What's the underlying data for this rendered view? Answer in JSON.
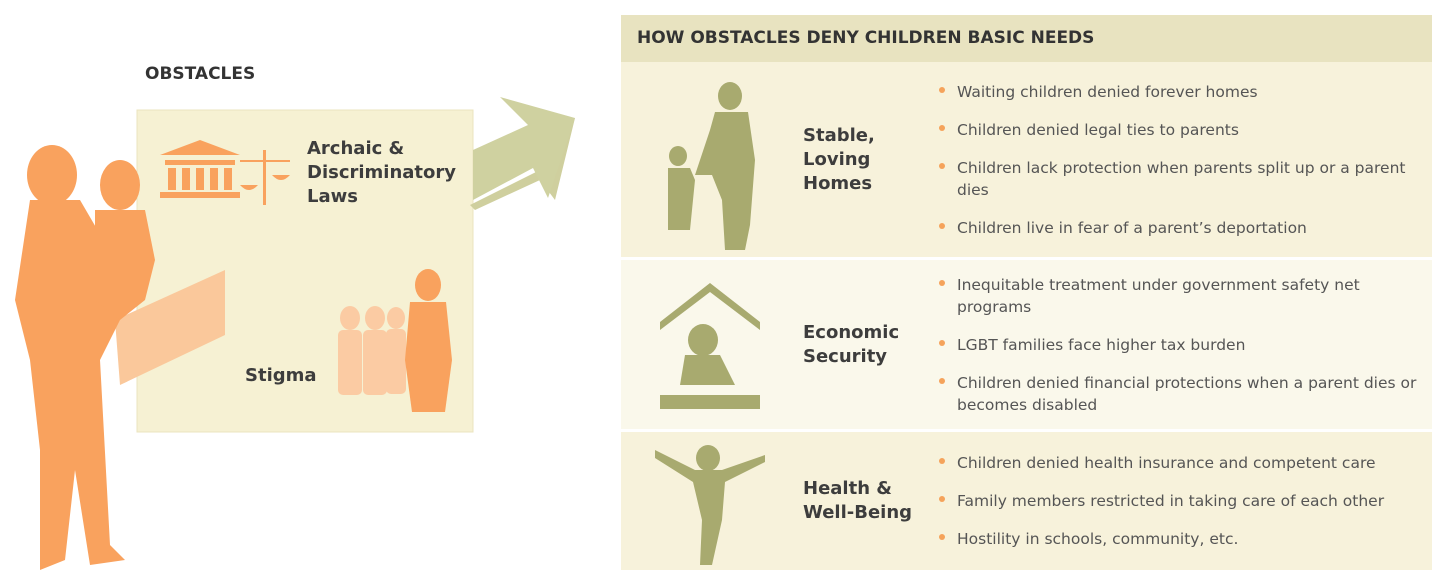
{
  "obstacles": {
    "title": "OBSTACLES",
    "items": [
      {
        "label": [
          "Archaic &",
          "Discriminatory",
          "Laws"
        ]
      },
      {
        "label": [
          "Stigma"
        ]
      }
    ]
  },
  "needs": {
    "title": "HOW OBSTACLES DENY CHILDREN BASIC NEEDS",
    "rows": [
      {
        "label": [
          "Stable,",
          "Loving",
          "Homes"
        ],
        "bullets": [
          "Waiting children denied forever homes",
          "Children denied legal ties to parents",
          "Children lack protection when parents split up or a parent dies",
          "Children live in fear of a parent’s deportation"
        ]
      },
      {
        "label": [
          "Economic",
          "Security"
        ],
        "bullets": [
          "Inequitable treatment under government safety net programs",
          "LGBT families face higher tax burden",
          "Children denied financial protections when a parent dies or becomes disabled"
        ]
      },
      {
        "label": [
          "Health &",
          "Well-Being"
        ],
        "bullets": [
          "Children denied health insurance and competent care",
          "Family members restricted in taking care of each other",
          "Hostility in schools, community, etc."
        ]
      }
    ]
  }
}
